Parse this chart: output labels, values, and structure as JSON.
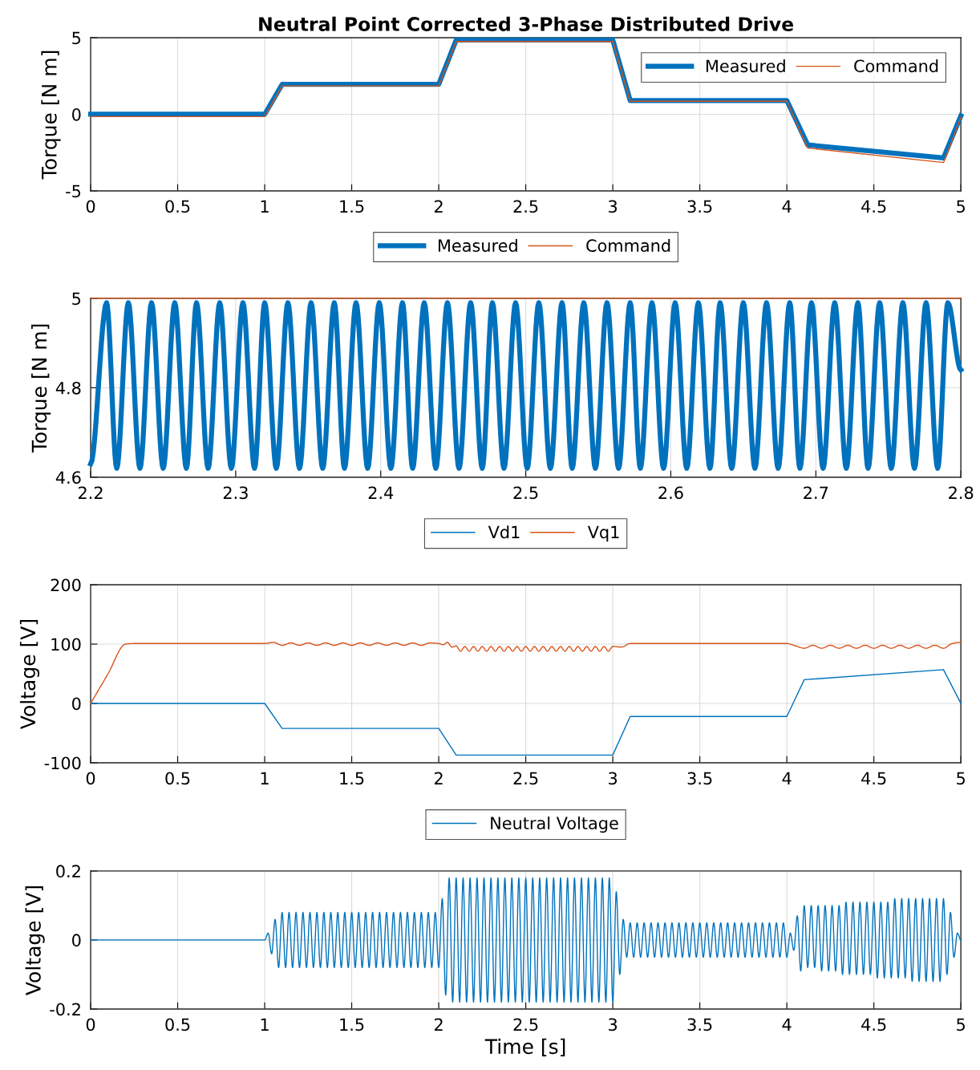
{
  "chart_data": [
    {
      "type": "line",
      "title": "Neutral Point Corrected 3-Phase Distributed Drive",
      "ylabel": "Torque [N m]",
      "xlim": [
        0,
        5
      ],
      "ylim": [
        -5,
        5
      ],
      "xticks": [
        0,
        0.5,
        1,
        1.5,
        2,
        2.5,
        3,
        3.5,
        4,
        4.5,
        5
      ],
      "yticks": [
        -5,
        0,
        5
      ],
      "grid": true,
      "legend": "top right",
      "series": [
        {
          "name": "Measured",
          "color": "#0072bd",
          "x": [
            0,
            1,
            1.1,
            2,
            2.1,
            3,
            3.1,
            4,
            4.12,
            4.9,
            5
          ],
          "values": [
            0,
            0,
            1.95,
            1.95,
            4.85,
            4.85,
            0.9,
            0.9,
            -2,
            -2.85,
            -0.1
          ]
        },
        {
          "name": "Command",
          "color": "#d95319",
          "x": [
            0,
            1,
            1.1,
            2,
            2.1,
            3,
            3.1,
            4,
            4.12,
            4.9,
            5
          ],
          "values": [
            -0.15,
            -0.15,
            1.85,
            1.85,
            4.75,
            4.75,
            0.85,
            0.85,
            -2.2,
            -3.15,
            -0.2
          ]
        }
      ]
    },
    {
      "type": "line",
      "ylabel": "Torque [N m]",
      "xlim": [
        2.2,
        2.8
      ],
      "ylim": [
        4.6,
        5
      ],
      "xticks": [
        2.2,
        2.3,
        2.4,
        2.5,
        2.6,
        2.7,
        2.8
      ],
      "yticks": [
        4.6,
        4.8,
        5
      ],
      "grid": true,
      "legend": "top",
      "series": [
        {
          "name": "Measured",
          "color": "#0072bd",
          "x": [
            2.2,
            2.211,
            2.218,
            2.226,
            2.234,
            2.242,
            2.25,
            2.258,
            2.266,
            2.273,
            2.281,
            2.289,
            2.297,
            2.305,
            2.313,
            2.32,
            2.328,
            2.336,
            2.344,
            2.352,
            2.36,
            2.368,
            2.375,
            2.383,
            2.391,
            2.399,
            2.407,
            2.415,
            2.422,
            2.43,
            2.438,
            2.446,
            2.454,
            2.462,
            2.47,
            2.477,
            2.485,
            2.493,
            2.501,
            2.509,
            2.517,
            2.525,
            2.532,
            2.54,
            2.548,
            2.556,
            2.564,
            2.572,
            2.579,
            2.587,
            2.595,
            2.603,
            2.611,
            2.619,
            2.627,
            2.634,
            2.642,
            2.65,
            2.658,
            2.666,
            2.674,
            2.682,
            2.689,
            2.697,
            2.705,
            2.713,
            2.721,
            2.729,
            2.736,
            2.744,
            2.752,
            2.76,
            2.768,
            2.776,
            2.784,
            2.791,
            2.8
          ],
          "values": [
            4.63,
            4.99,
            4.62,
            4.99,
            4.62,
            4.99,
            4.62,
            4.99,
            4.62,
            4.99,
            4.62,
            4.99,
            4.62,
            4.99,
            4.62,
            4.99,
            4.62,
            4.99,
            4.62,
            4.99,
            4.62,
            4.99,
            4.62,
            4.99,
            4.62,
            4.99,
            4.62,
            4.99,
            4.62,
            4.99,
            4.62,
            4.99,
            4.62,
            4.99,
            4.62,
            4.99,
            4.62,
            4.99,
            4.62,
            4.99,
            4.62,
            4.99,
            4.62,
            4.99,
            4.62,
            4.99,
            4.62,
            4.99,
            4.62,
            4.99,
            4.62,
            4.99,
            4.62,
            4.99,
            4.62,
            4.99,
            4.62,
            4.99,
            4.62,
            4.99,
            4.62,
            4.99,
            4.62,
            4.99,
            4.62,
            4.99,
            4.62,
            4.99,
            4.62,
            4.99,
            4.62,
            4.99,
            4.62,
            4.99,
            4.62,
            4.99,
            4.84
          ]
        },
        {
          "name": "Command",
          "color": "#d95319",
          "x": [
            2.2,
            2.8
          ],
          "values": [
            5,
            5
          ]
        }
      ]
    },
    {
      "type": "line",
      "ylabel": "Voltage [V]",
      "xlim": [
        0,
        5
      ],
      "ylim": [
        -100,
        200
      ],
      "xticks": [
        0,
        0.5,
        1,
        1.5,
        2,
        2.5,
        3,
        3.5,
        4,
        4.5,
        5
      ],
      "yticks": [
        -100,
        0,
        100,
        200
      ],
      "grid": true,
      "legend": "top",
      "series": [
        {
          "name": "Vd1",
          "color": "#0072bd",
          "x": [
            0,
            1,
            1.1,
            2,
            2.1,
            3,
            3.1,
            4,
            4.1,
            4.9,
            5
          ],
          "values": [
            0,
            0,
            -42,
            -42,
            -87,
            -87,
            -22,
            -22,
            40,
            57,
            0
          ]
        },
        {
          "name": "Vq1",
          "color": "#d95319",
          "x": [
            0,
            0.1,
            0.2,
            0.25,
            1,
            1.05,
            1.1,
            1.15,
            1.2,
            1.25,
            1.3,
            1.35,
            1.4,
            1.45,
            1.5,
            1.55,
            1.6,
            1.65,
            1.7,
            1.75,
            1.8,
            1.85,
            1.9,
            1.95,
            2,
            2.025,
            2.05,
            2.075,
            2.1,
            2.125,
            2.15,
            2.175,
            2.2,
            2.225,
            2.25,
            2.275,
            2.3,
            2.325,
            2.35,
            2.375,
            2.4,
            2.425,
            2.45,
            2.475,
            2.5,
            2.525,
            2.55,
            2.575,
            2.6,
            2.625,
            2.65,
            2.675,
            2.7,
            2.725,
            2.75,
            2.775,
            2.8,
            2.825,
            2.85,
            2.875,
            2.9,
            2.925,
            2.95,
            2.975,
            3,
            3.05,
            3.1,
            4,
            4.05,
            4.1,
            4.15,
            4.2,
            4.25,
            4.3,
            4.35,
            4.4,
            4.45,
            4.5,
            4.55,
            4.6,
            4.65,
            4.7,
            4.75,
            4.8,
            4.85,
            4.9,
            4.95,
            5
          ],
          "values": [
            0,
            50,
            100,
            101,
            101,
            103,
            98,
            102,
            98,
            102,
            98,
            102,
            98,
            102,
            98,
            102,
            98,
            102,
            98,
            102,
            98,
            102,
            98,
            102,
            101,
            99,
            103,
            95,
            97,
            88,
            96,
            88,
            96,
            88,
            96,
            88,
            96,
            88,
            96,
            88,
            96,
            88,
            96,
            88,
            96,
            88,
            96,
            88,
            96,
            88,
            96,
            88,
            96,
            88,
            96,
            88,
            96,
            88,
            96,
            88,
            96,
            88,
            96,
            88,
            96,
            95,
            101,
            101,
            97,
            93,
            98,
            93,
            98,
            93,
            98,
            93,
            98,
            93,
            98,
            93,
            98,
            93,
            98,
            93,
            98,
            93,
            101,
            103
          ]
        }
      ]
    },
    {
      "type": "line",
      "ylabel": "Voltage [V]",
      "xlabel": "Time [s]",
      "xlim": [
        0,
        5
      ],
      "ylim": [
        -0.2,
        0.2
      ],
      "xticks": [
        0,
        0.5,
        1,
        1.5,
        2,
        2.5,
        3,
        3.5,
        4,
        4.5,
        5
      ],
      "yticks": [
        -0.2,
        0,
        0.2
      ],
      "grid": true,
      "legend": "top",
      "series": [
        {
          "name": "Neutral Voltage",
          "color": "#0072bd",
          "x": [
            0,
            1,
            1.02,
            1.04,
            1.06,
            1.08,
            1.1,
            1.12,
            1.14,
            1.16,
            1.18,
            1.2,
            1.22,
            1.24,
            1.26,
            1.28,
            1.3,
            1.32,
            1.34,
            1.36,
            1.38,
            1.4,
            1.42,
            1.44,
            1.46,
            1.48,
            1.5,
            1.52,
            1.54,
            1.56,
            1.58,
            1.6,
            1.62,
            1.64,
            1.66,
            1.68,
            1.7,
            1.72,
            1.74,
            1.76,
            1.78,
            1.8,
            1.82,
            1.84,
            1.86,
            1.88,
            1.9,
            1.92,
            1.94,
            1.96,
            1.98,
            2,
            2.02,
            2.04,
            2.06,
            2.08,
            2.1,
            2.12,
            2.14,
            2.16,
            2.18,
            2.2,
            2.22,
            2.24,
            2.26,
            2.28,
            2.3,
            2.32,
            2.34,
            2.36,
            2.38,
            2.4,
            2.42,
            2.44,
            2.46,
            2.48,
            2.5,
            2.52,
            2.54,
            2.56,
            2.58,
            2.6,
            2.62,
            2.64,
            2.66,
            2.68,
            2.7,
            2.72,
            2.74,
            2.76,
            2.78,
            2.8,
            2.82,
            2.84,
            2.86,
            2.88,
            2.9,
            2.92,
            2.94,
            2.96,
            2.98,
            3,
            3.02,
            3.04,
            3.06,
            3.08,
            3.1,
            3.12,
            3.14,
            3.16,
            3.18,
            3.2,
            3.22,
            3.24,
            3.26,
            3.28,
            3.3,
            3.32,
            3.34,
            3.36,
            3.38,
            3.4,
            3.42,
            3.44,
            3.46,
            3.48,
            3.5,
            3.52,
            3.54,
            3.56,
            3.58,
            3.6,
            3.62,
            3.64,
            3.66,
            3.68,
            3.7,
            3.72,
            3.74,
            3.76,
            3.78,
            3.8,
            3.82,
            3.84,
            3.86,
            3.88,
            3.9,
            3.92,
            3.94,
            3.96,
            3.98,
            4,
            4.02,
            4.04,
            4.06,
            4.08,
            4.1,
            4.12,
            4.14,
            4.16,
            4.18,
            4.2,
            4.22,
            4.24,
            4.26,
            4.28,
            4.3,
            4.32,
            4.34,
            4.36,
            4.38,
            4.4,
            4.42,
            4.44,
            4.46,
            4.48,
            4.5,
            4.52,
            4.54,
            4.56,
            4.58,
            4.6,
            4.62,
            4.64,
            4.66,
            4.68,
            4.7,
            4.72,
            4.74,
            4.76,
            4.78,
            4.8,
            4.82,
            4.84,
            4.86,
            4.88,
            4.9,
            4.92,
            4.94,
            4.96,
            4.98,
            5
          ],
          "values": [
            0,
            0,
            0.02,
            -0.04,
            0.06,
            -0.08,
            0.08,
            -0.08,
            0.08,
            -0.08,
            0.08,
            -0.08,
            0.08,
            -0.08,
            0.08,
            -0.08,
            0.08,
            -0.08,
            0.08,
            -0.08,
            0.08,
            -0.08,
            0.08,
            -0.08,
            0.08,
            -0.08,
            0.08,
            -0.08,
            0.08,
            -0.08,
            0.08,
            -0.08,
            0.08,
            -0.08,
            0.08,
            -0.08,
            0.08,
            -0.08,
            0.08,
            -0.08,
            0.08,
            -0.08,
            0.08,
            -0.08,
            0.08,
            -0.08,
            0.08,
            -0.08,
            0.08,
            -0.08,
            0.08,
            -0.08,
            0.12,
            -0.16,
            0.18,
            -0.18,
            0.18,
            -0.18,
            0.18,
            -0.18,
            0.18,
            -0.18,
            0.18,
            -0.18,
            0.18,
            -0.18,
            0.18,
            -0.18,
            0.18,
            -0.18,
            0.18,
            -0.18,
            0.18,
            -0.18,
            0.18,
            -0.18,
            0.18,
            -0.18,
            0.18,
            -0.18,
            0.18,
            -0.18,
            0.18,
            -0.18,
            0.18,
            -0.18,
            0.18,
            -0.18,
            0.18,
            -0.18,
            0.18,
            -0.18,
            0.18,
            -0.18,
            0.18,
            -0.18,
            0.18,
            -0.18,
            0.18,
            -0.18,
            0.18,
            -0.18,
            0.14,
            -0.1,
            0.06,
            -0.05,
            0.05,
            -0.05,
            0.05,
            -0.05,
            0.05,
            -0.05,
            0.05,
            -0.05,
            0.05,
            -0.05,
            0.05,
            -0.05,
            0.05,
            -0.05,
            0.05,
            -0.05,
            0.05,
            -0.05,
            0.05,
            -0.05,
            0.05,
            -0.05,
            0.05,
            -0.05,
            0.05,
            -0.05,
            0.05,
            -0.05,
            0.05,
            -0.05,
            0.05,
            -0.05,
            0.05,
            -0.05,
            0.05,
            -0.05,
            0.05,
            -0.05,
            0.05,
            -0.05,
            0.05,
            -0.05,
            0.05,
            -0.05,
            0.05,
            -0.05,
            0.02,
            -0.03,
            0.07,
            -0.09,
            0.1,
            -0.08,
            0.1,
            -0.08,
            0.1,
            -0.09,
            0.1,
            -0.09,
            0.1,
            -0.09,
            0.1,
            -0.1,
            0.11,
            -0.1,
            0.11,
            -0.1,
            0.11,
            -0.1,
            0.11,
            -0.1,
            0.11,
            -0.11,
            0.11,
            -0.11,
            0.11,
            -0.11,
            0.12,
            -0.11,
            0.12,
            -0.11,
            0.12,
            -0.12,
            0.12,
            -0.12,
            0.12,
            -0.12,
            0.12,
            -0.12,
            0.12,
            -0.12,
            0.12,
            -0.1,
            0.08,
            -0.05,
            0.02,
            0
          ]
        }
      ]
    }
  ]
}
